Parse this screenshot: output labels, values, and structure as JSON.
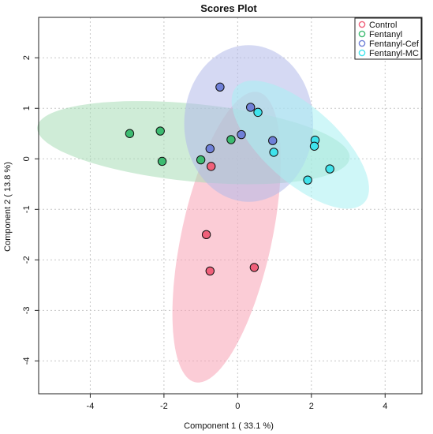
{
  "chart_data": {
    "type": "scatter",
    "title": "Scores Plot",
    "xlabel": "Component 1 ( 33.1 %)",
    "ylabel": "Component 2 ( 13.8 %)",
    "xlim": [
      -5.4,
      5.0
    ],
    "ylim": [
      -4.65,
      2.8
    ],
    "xticks": [
      -4,
      -2,
      0,
      2,
      4
    ],
    "yticks": [
      2,
      1,
      0,
      -1,
      -2,
      -3,
      -4
    ],
    "grid": true,
    "legend_position": "top-right",
    "series": [
      {
        "name": "Control",
        "fill": "#f0607a",
        "ellipse_fill": "#f7a3b4",
        "points": [
          [
            -0.72,
            -0.15
          ],
          [
            -0.85,
            -1.5
          ],
          [
            -0.75,
            -2.22
          ],
          [
            0.45,
            -2.15
          ]
        ],
        "ellipse": {
          "center": [
            -0.3,
            -1.55
          ],
          "semi_major": 3.0,
          "semi_minor": 1.2,
          "angle_deg": 72
        }
      },
      {
        "name": "Fentanyl",
        "fill": "#3dbb71",
        "ellipse_fill": "#a8dcb6",
        "points": [
          [
            -2.93,
            0.5
          ],
          [
            -2.1,
            0.55
          ],
          [
            -2.05,
            -0.05
          ],
          [
            -1.0,
            -0.02
          ],
          [
            -0.18,
            0.38
          ]
        ],
        "ellipse": {
          "center": [
            -1.2,
            0.32
          ],
          "semi_major": 4.25,
          "semi_minor": 0.77,
          "angle_deg": -4
        }
      },
      {
        "name": "Fentanyl-Cef",
        "fill": "#6f80d8",
        "ellipse_fill": "#b3baea",
        "points": [
          [
            -0.48,
            1.42
          ],
          [
            0.35,
            1.02
          ],
          [
            0.1,
            0.48
          ],
          [
            0.95,
            0.36
          ],
          [
            -0.75,
            0.2
          ]
        ],
        "ellipse": {
          "center": [
            0.3,
            0.7
          ],
          "semi_major": 1.75,
          "semi_minor": 1.55,
          "angle_deg": 0
        }
      },
      {
        "name": "Fentanyl-MC",
        "fill": "#3fe3ec",
        "ellipse_fill": "#a8f0f3",
        "points": [
          [
            0.55,
            0.92
          ],
          [
            2.1,
            0.37
          ],
          [
            2.08,
            0.25
          ],
          [
            0.98,
            0.13
          ],
          [
            2.5,
            -0.2
          ],
          [
            1.9,
            -0.42
          ]
        ],
        "ellipse": {
          "center": [
            1.7,
            0.28
          ],
          "semi_major": 2.1,
          "semi_minor": 0.82,
          "angle_deg": -30
        }
      }
    ]
  }
}
